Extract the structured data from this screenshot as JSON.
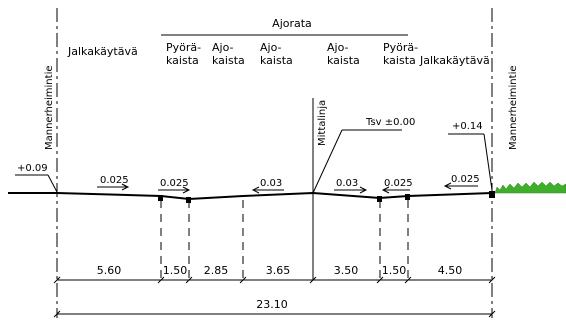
{
  "title": "Ajorata",
  "zones": {
    "jalkakaytava_left": "Jalkakäytävä",
    "pyora_left": [
      "Pyörä-",
      "kaista"
    ],
    "ajo_1": [
      "Ajo-",
      "kaista"
    ],
    "ajo_2": [
      "Ajo-",
      "kaista"
    ],
    "ajo_3": [
      "Ajo-",
      "kaista"
    ],
    "pyora_right": [
      "Pyörä-",
      "kaista"
    ],
    "jalkakaytava_right": "Jalkakäytävä"
  },
  "vertical_labels": {
    "left": "Mannerheimintie",
    "center": "Mittalinja",
    "right": "Mannerheimintie"
  },
  "elevations": {
    "left": "+0.09",
    "tsv": "Tsv ±0.00",
    "right": "+0.14"
  },
  "slopes": [
    "0.025",
    "0.025",
    "0.03",
    "0.03",
    "0.025",
    "0.025"
  ],
  "dimensions": [
    "5.60",
    "1.50",
    "2.85",
    "3.65",
    "3.50",
    "1.50",
    "4.50"
  ],
  "total_width": "23.10",
  "colors": {
    "line": "#000000",
    "grass": "#3fae2a"
  }
}
